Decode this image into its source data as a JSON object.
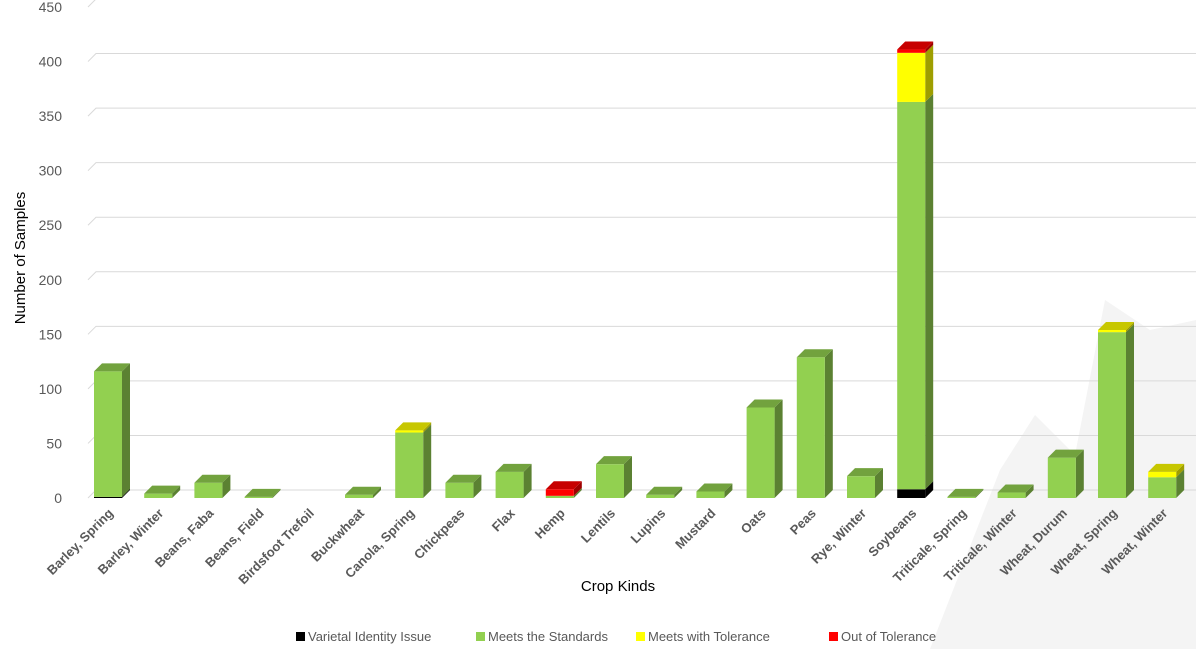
{
  "chart_data": {
    "type": "bar",
    "stacked": true,
    "three_d": true,
    "title": "",
    "xlabel": "Crop Kinds",
    "ylabel": "Number of Samples",
    "ylim": [
      0,
      450
    ],
    "yticks": [
      0,
      50,
      100,
      150,
      200,
      250,
      300,
      350,
      400,
      450
    ],
    "grid": true,
    "legend_position": "bottom",
    "categories": [
      "Barley, Spring",
      "Barley, Winter",
      "Beans, Faba",
      "Beans, Field",
      "Birdsfoot Trefoil",
      "Buckwheat",
      "Canola, Spring",
      "Chickpeas",
      "Flax",
      "Hemp",
      "Lentils",
      "Lupins",
      "Mustard",
      "Oats",
      "Peas",
      "Rye, Winter",
      "Soybeans",
      "Triticale, Spring",
      "Triticale, Winter",
      "Wheat, Durum",
      "Wheat, Spring",
      "Wheat, Winter"
    ],
    "series": [
      {
        "name": "Varietal Identity Issue",
        "color": "#000000",
        "values": [
          1,
          0,
          0,
          0,
          0,
          0,
          0,
          0,
          0,
          0,
          0,
          0,
          0,
          0,
          0,
          0,
          8,
          0,
          0,
          0,
          0,
          0
        ]
      },
      {
        "name": "Meets the Standards",
        "color": "#92D050",
        "values": [
          115,
          4,
          14,
          1,
          0,
          3,
          60,
          14,
          24,
          2,
          31,
          3,
          6,
          83,
          129,
          20,
          355,
          1,
          5,
          37,
          152,
          19
        ]
      },
      {
        "name": "Meets with Tolerance",
        "color": "#FFFF00",
        "values": [
          0,
          0,
          0,
          0,
          0,
          0,
          2,
          0,
          0,
          0,
          0,
          0,
          0,
          0,
          0,
          0,
          45,
          0,
          0,
          0,
          2,
          5
        ]
      },
      {
        "name": "Out of Tolerance",
        "color": "#FF0000",
        "values": [
          0,
          0,
          0,
          0,
          0,
          0,
          0,
          0,
          0,
          6,
          0,
          0,
          0,
          0,
          0,
          0,
          3,
          0,
          0,
          0,
          0,
          0
        ]
      }
    ]
  }
}
